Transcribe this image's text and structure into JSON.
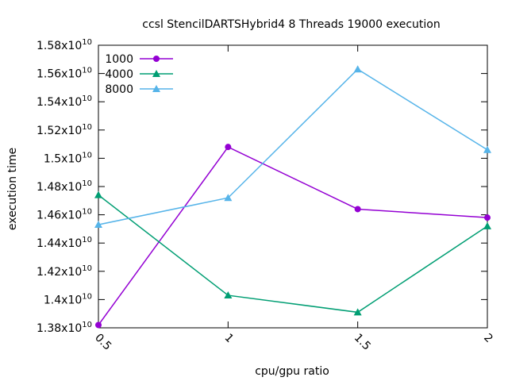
{
  "chart_data": {
    "type": "line",
    "title": "ccsl StencilDARTSHybrid4 8 Threads 19000 execution",
    "xlabel": "cpu/gpu ratio",
    "ylabel": "execution time",
    "x": [
      0.5,
      1,
      1.5,
      2
    ],
    "x_tick_labels": [
      "0.5",
      "1",
      "1.5",
      "2"
    ],
    "xlim": [
      0.5,
      2
    ],
    "ylim": [
      13800000000,
      15800000000
    ],
    "y_ticks": [
      {
        "value": 13800000000,
        "mantissa": "1.38",
        "exp": "10"
      },
      {
        "value": 14000000000,
        "mantissa": "1.4",
        "exp": "10"
      },
      {
        "value": 14200000000,
        "mantissa": "1.42",
        "exp": "10"
      },
      {
        "value": 14400000000,
        "mantissa": "1.44",
        "exp": "10"
      },
      {
        "value": 14600000000,
        "mantissa": "1.46",
        "exp": "10"
      },
      {
        "value": 14800000000,
        "mantissa": "1.48",
        "exp": "10"
      },
      {
        "value": 15000000000,
        "mantissa": "1.5",
        "exp": "10"
      },
      {
        "value": 15200000000,
        "mantissa": "1.52",
        "exp": "10"
      },
      {
        "value": 15400000000,
        "mantissa": "1.54",
        "exp": "10"
      },
      {
        "value": 15600000000,
        "mantissa": "1.56",
        "exp": "10"
      },
      {
        "value": 15800000000,
        "mantissa": "1.58",
        "exp": "10"
      }
    ],
    "tick_base": "x10",
    "grid": false,
    "legend_position": "top-left",
    "series": [
      {
        "name": "1000",
        "color": "#9400d3",
        "marker": "circle",
        "values": [
          13820000000,
          15080000000,
          14640000000,
          14580000000
        ]
      },
      {
        "name": "4000",
        "color": "#009e73",
        "marker": "triangle",
        "values": [
          14740000000,
          14030000000,
          13910000000,
          14520000000
        ]
      },
      {
        "name": "8000",
        "color": "#56b4e9",
        "marker": "triangle",
        "values": [
          14530000000,
          14720000000,
          15630000000,
          15060000000
        ]
      }
    ]
  }
}
